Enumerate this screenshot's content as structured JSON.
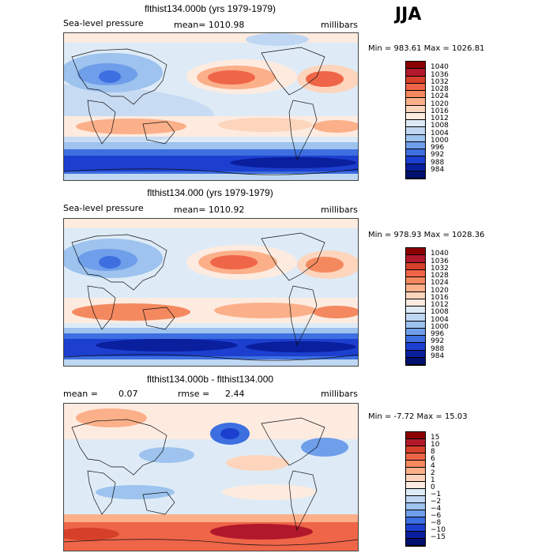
{
  "season": "JJA",
  "panels": [
    {
      "title": "flthist134.000b (yrs 1979-1979)",
      "var_label": "Sea-level pressure",
      "stat_text": "mean= 1010.98",
      "units": "millibars",
      "minmax": "Min = 983.61 Max = 1026.81",
      "levels": [
        "1040",
        "1036",
        "1032",
        "1028",
        "1024",
        "1020",
        "1016",
        "1012",
        "1008",
        "1004",
        "1000",
        "996",
        "992",
        "988",
        "984"
      ],
      "colors": [
        "#8b0000",
        "#b2182b",
        "#d6402a",
        "#ef6548",
        "#f4895f",
        "#fbb08a",
        "#fdd5bd",
        "#fdebe0",
        "#deebf7",
        "#bfd7f2",
        "#9dc3ee",
        "#6f9eea",
        "#3d6fe0",
        "#1c3fcf",
        "#0a1f9e",
        "#001070"
      ]
    },
    {
      "title": "flthist134.000 (yrs 1979-1979)",
      "var_label": "Sea-level pressure",
      "stat_text": "mean= 1010.92",
      "units": "millibars",
      "minmax": "Min = 978.93 Max = 1028.36",
      "levels": [
        "1040",
        "1036",
        "1032",
        "1028",
        "1024",
        "1020",
        "1016",
        "1012",
        "1008",
        "1004",
        "1000",
        "996",
        "992",
        "988",
        "984"
      ],
      "colors": [
        "#8b0000",
        "#b2182b",
        "#d6402a",
        "#ef6548",
        "#f4895f",
        "#fbb08a",
        "#fdd5bd",
        "#fdebe0",
        "#deebf7",
        "#bfd7f2",
        "#9dc3ee",
        "#6f9eea",
        "#3d6fe0",
        "#1c3fcf",
        "#0a1f9e",
        "#001070"
      ]
    },
    {
      "title": "flthist134.000b - flthist134.000",
      "mean_label": "mean =",
      "mean_value": "0.07",
      "rmse_label": "rmse =",
      "rmse_value": "2.44",
      "units": "millibars",
      "minmax": "Min =  -7.72 Max =   15.03",
      "levels": [
        "15",
        "10",
        "8",
        "6",
        "4",
        "2",
        "1",
        "0",
        "−1",
        "−2",
        "−4",
        "−6",
        "−8",
        "−10",
        "−15"
      ],
      "colors": [
        "#8b0000",
        "#b2182b",
        "#d6402a",
        "#ef6548",
        "#f4895f",
        "#fbb08a",
        "#fdd5bd",
        "#fdebe0",
        "#deebf7",
        "#bfd7f2",
        "#9dc3ee",
        "#6f9eea",
        "#3d6fe0",
        "#1c3fcf",
        "#0a1f9e",
        "#001070"
      ]
    }
  ]
}
